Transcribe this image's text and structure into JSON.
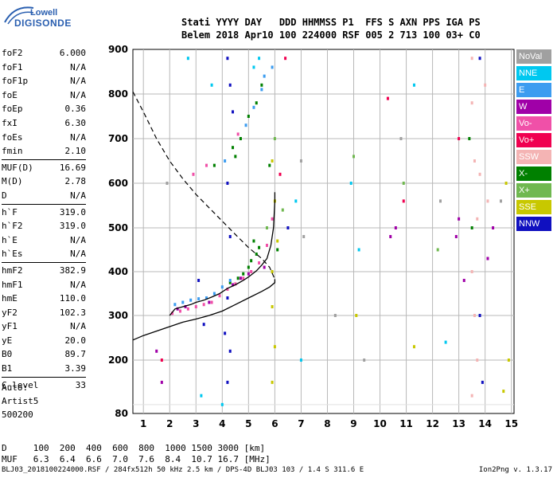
{
  "logo": {
    "line1": "Lowell",
    "line2": "DIGISONDE"
  },
  "header": {
    "line1": "Stati YYYY DAY   DDD HHMMSS P1  FFS S AXN PPS IGA PS",
    "line2": "Belem 2018 Apr10 100 224000 RSF 005 2 713 100 03+ C0"
  },
  "params": [
    [
      {
        "k": "foF2",
        "v": "6.000"
      },
      {
        "k": "foF1",
        "v": "N/A"
      },
      {
        "k": "foF1p",
        "v": "N/A"
      },
      {
        "k": "foE",
        "v": "N/A"
      },
      {
        "k": "foEp",
        "v": "0.36"
      },
      {
        "k": "fxI",
        "v": "6.30"
      },
      {
        "k": "foEs",
        "v": "N/A"
      },
      {
        "k": "fmin",
        "v": "2.10"
      }
    ],
    [
      {
        "k": "MUF(D)",
        "v": "16.69"
      },
      {
        "k": "M(D)",
        "v": "2.78"
      },
      {
        "k": "D",
        "v": "N/A"
      }
    ],
    [
      {
        "k": "h`F",
        "v": "319.0"
      },
      {
        "k": "h`F2",
        "v": "319.0"
      },
      {
        "k": "h`E",
        "v": "N/A"
      },
      {
        "k": "h`Es",
        "v": "N/A"
      }
    ],
    [
      {
        "k": "hmF2",
        "v": "382.9"
      },
      {
        "k": "hmF1",
        "v": "N/A"
      },
      {
        "k": "hmE",
        "v": "110.0"
      },
      {
        "k": "yF2",
        "v": "102.3"
      },
      {
        "k": "yF1",
        "v": "N/A"
      },
      {
        "k": "yE",
        "v": "20.0"
      },
      {
        "k": "B0",
        "v": "89.7"
      },
      {
        "k": "B1",
        "v": "3.39"
      }
    ],
    [
      {
        "k": "C-level",
        "v": "33"
      }
    ]
  ],
  "auto": {
    "l1": "Auto:",
    "l2": "Artist5",
    "l3": "500200"
  },
  "legend": [
    {
      "label": "NoVal",
      "color": "#a0a0a0"
    },
    {
      "label": "NNE",
      "color": "#00c8f0"
    },
    {
      "label": "E",
      "color": "#3c9cf0"
    },
    {
      "label": "W",
      "color": "#a000a8"
    },
    {
      "label": "Vo-",
      "color": "#f050a8"
    },
    {
      "label": "Vo+",
      "color": "#f00050"
    },
    {
      "label": "SSW",
      "color": "#f4b4b4"
    },
    {
      "label": "X-",
      "color": "#008000"
    },
    {
      "label": "X+",
      "color": "#70b850"
    },
    {
      "label": "SSE",
      "color": "#c8c800"
    },
    {
      "label": "NNW",
      "color": "#1010c0"
    }
  ],
  "dmuf": {
    "line1": "D     100  200  400  600  800  1000 1500 3000 [km]",
    "line2": "MUF   6.3  6.4  6.6  7.0  7.6  8.4  10.7 16.7 [MHz]"
  },
  "footer": {
    "left": "BLJ03_2018100224000.RSF / 284fx512h 50 kHz 2.5 km / DPS-4D BLJ03 103 / 1.4 S 311.6 E",
    "right": "Ion2Png v. 1.3.17"
  },
  "chart_data": {
    "type": "scatter",
    "title": "",
    "xlabel": "",
    "ylabel": "",
    "xlim": [
      0.6,
      15.1
    ],
    "ylim": [
      80,
      900
    ],
    "xticks": [
      1,
      2,
      3,
      4,
      5,
      6,
      7,
      8,
      9,
      10,
      11,
      12,
      13,
      14,
      15
    ],
    "yticks": [
      80,
      200,
      300,
      400,
      500,
      600,
      700,
      800,
      900
    ],
    "grid": true,
    "legend_position": "right",
    "series": [
      {
        "name": "X-",
        "color": "#008000",
        "points": [
          [
            4.3,
            375
          ],
          [
            4.6,
            385
          ],
          [
            4.8,
            395
          ],
          [
            5.0,
            410
          ],
          [
            5.1,
            425
          ],
          [
            5.3,
            440
          ],
          [
            5.4,
            455
          ],
          [
            5.2,
            470
          ],
          [
            4.5,
            660
          ],
          [
            4.7,
            700
          ],
          [
            5.0,
            750
          ],
          [
            5.3,
            780
          ],
          [
            5.5,
            820
          ],
          [
            5.8,
            640
          ],
          [
            6.1,
            450
          ],
          [
            3.7,
            640
          ],
          [
            4.4,
            680
          ],
          [
            13.4,
            700
          ],
          [
            13.5,
            500
          ]
        ]
      },
      {
        "name": "Vo-",
        "color": "#f050a8",
        "points": [
          [
            2.1,
            305
          ],
          [
            2.4,
            310
          ],
          [
            2.7,
            315
          ],
          [
            3.0,
            320
          ],
          [
            3.3,
            325
          ],
          [
            3.6,
            330
          ],
          [
            3.9,
            345
          ],
          [
            4.2,
            360
          ],
          [
            4.5,
            372
          ],
          [
            4.8,
            385
          ],
          [
            5.1,
            400
          ],
          [
            5.4,
            420
          ],
          [
            5.7,
            460
          ],
          [
            5.9,
            520
          ],
          [
            2.9,
            620
          ],
          [
            3.4,
            640
          ],
          [
            4.6,
            710
          ]
        ]
      },
      {
        "name": "E",
        "color": "#3c9cf0",
        "points": [
          [
            2.2,
            325
          ],
          [
            2.5,
            330
          ],
          [
            2.8,
            335
          ],
          [
            3.1,
            338
          ],
          [
            3.4,
            340
          ],
          [
            3.7,
            350
          ],
          [
            4.0,
            365
          ],
          [
            4.3,
            380
          ],
          [
            4.1,
            650
          ],
          [
            4.9,
            730
          ],
          [
            5.2,
            770
          ],
          [
            5.5,
            810
          ],
          [
            5.6,
            840
          ],
          [
            5.9,
            860
          ]
        ]
      },
      {
        "name": "W",
        "color": "#a000a8",
        "points": [
          [
            2.3,
            315
          ],
          [
            2.6,
            320
          ],
          [
            3.5,
            330
          ],
          [
            4.4,
            370
          ],
          [
            4.7,
            385
          ],
          [
            5.0,
            395
          ],
          [
            5.6,
            410
          ],
          [
            10.4,
            480
          ],
          [
            10.6,
            500
          ],
          [
            12.9,
            480
          ],
          [
            13.0,
            520
          ],
          [
            14.1,
            430
          ],
          [
            14.3,
            500
          ],
          [
            13.2,
            380
          ],
          [
            1.5,
            220
          ],
          [
            1.7,
            150
          ]
        ]
      },
      {
        "name": "NNE",
        "color": "#00c8f0",
        "points": [
          [
            2.7,
            880
          ],
          [
            3.6,
            820
          ],
          [
            5.2,
            860
          ],
          [
            5.4,
            880
          ],
          [
            6.8,
            560
          ],
          [
            7.0,
            200
          ],
          [
            8.9,
            600
          ],
          [
            9.2,
            450
          ],
          [
            11.3,
            820
          ],
          [
            12.5,
            240
          ],
          [
            3.2,
            120
          ],
          [
            4.0,
            100
          ]
        ]
      },
      {
        "name": "Vo+",
        "color": "#f00050",
        "points": [
          [
            6.4,
            880
          ],
          [
            6.2,
            620
          ],
          [
            10.3,
            790
          ],
          [
            13.0,
            700
          ],
          [
            1.7,
            200
          ],
          [
            10.9,
            560
          ]
        ]
      },
      {
        "name": "SSW",
        "color": "#f4b4b4",
        "points": [
          [
            13.5,
            880
          ],
          [
            13.5,
            780
          ],
          [
            13.6,
            650
          ],
          [
            13.7,
            520
          ],
          [
            13.5,
            400
          ],
          [
            13.6,
            300
          ],
          [
            13.7,
            200
          ],
          [
            13.5,
            120
          ],
          [
            13.8,
            620
          ],
          [
            14.0,
            820
          ],
          [
            14.1,
            560
          ]
        ]
      },
      {
        "name": "X+",
        "color": "#70b850",
        "points": [
          [
            6.0,
            700
          ],
          [
            6.3,
            540
          ],
          [
            9.0,
            660
          ],
          [
            10.9,
            600
          ],
          [
            12.2,
            450
          ],
          [
            5.7,
            500
          ]
        ]
      },
      {
        "name": "SSE",
        "color": "#c8c800",
        "points": [
          [
            5.9,
            650
          ],
          [
            6.0,
            560
          ],
          [
            6.1,
            470
          ],
          [
            5.9,
            400
          ],
          [
            5.9,
            320
          ],
          [
            6.0,
            230
          ],
          [
            5.9,
            150
          ],
          [
            9.1,
            300
          ],
          [
            11.3,
            230
          ],
          [
            14.8,
            600
          ],
          [
            14.9,
            200
          ],
          [
            14.7,
            130
          ]
        ]
      },
      {
        "name": "NNW",
        "color": "#1010c0",
        "points": [
          [
            4.2,
            880
          ],
          [
            4.3,
            820
          ],
          [
            4.4,
            760
          ],
          [
            4.2,
            600
          ],
          [
            4.3,
            480
          ],
          [
            4.2,
            340
          ],
          [
            4.3,
            220
          ],
          [
            4.2,
            150
          ],
          [
            4.1,
            260
          ],
          [
            3.1,
            380
          ],
          [
            3.3,
            280
          ],
          [
            6.5,
            500
          ],
          [
            13.8,
            880
          ],
          [
            13.8,
            300
          ],
          [
            13.9,
            150
          ]
        ]
      },
      {
        "name": "NoVal",
        "color": "#a0a0a0",
        "points": [
          [
            7.0,
            650
          ],
          [
            7.1,
            480
          ],
          [
            8.3,
            300
          ],
          [
            9.4,
            200
          ],
          [
            10.8,
            700
          ],
          [
            12.3,
            560
          ],
          [
            14.6,
            560
          ],
          [
            1.9,
            600
          ]
        ]
      }
    ],
    "curves": {
      "trace": [
        [
          2.0,
          300
        ],
        [
          2.2,
          315
        ],
        [
          2.5,
          320
        ],
        [
          2.8,
          325
        ],
        [
          3.0,
          330
        ],
        [
          3.3,
          335
        ],
        [
          3.6,
          342
        ],
        [
          3.9,
          350
        ],
        [
          4.2,
          362
        ],
        [
          4.5,
          370
        ],
        [
          4.8,
          380
        ],
        [
          5.0,
          388
        ],
        [
          5.3,
          402
        ],
        [
          5.5,
          415
        ],
        [
          5.7,
          430
        ],
        [
          5.85,
          460
        ],
        [
          5.95,
          500
        ],
        [
          6.0,
          560
        ],
        [
          6.0,
          580
        ]
      ],
      "profile_solid": [
        [
          0.6,
          245
        ],
        [
          1.0,
          255
        ],
        [
          1.5,
          265
        ],
        [
          2.0,
          275
        ],
        [
          2.5,
          285
        ],
        [
          3.0,
          292
        ],
        [
          3.5,
          300
        ],
        [
          4.0,
          310
        ],
        [
          4.5,
          325
        ],
        [
          5.0,
          340
        ],
        [
          5.5,
          355
        ],
        [
          5.8,
          365
        ],
        [
          6.0,
          375
        ],
        [
          6.0,
          383
        ]
      ],
      "profile_dashed": [
        [
          0.6,
          805
        ],
        [
          1.0,
          760
        ],
        [
          1.5,
          700
        ],
        [
          2.0,
          650
        ],
        [
          2.5,
          610
        ],
        [
          3.0,
          575
        ],
        [
          3.5,
          545
        ],
        [
          4.0,
          515
        ],
        [
          4.5,
          485
        ],
        [
          5.0,
          455
        ],
        [
          5.5,
          430
        ],
        [
          5.8,
          410
        ],
        [
          6.0,
          383
        ]
      ]
    }
  }
}
